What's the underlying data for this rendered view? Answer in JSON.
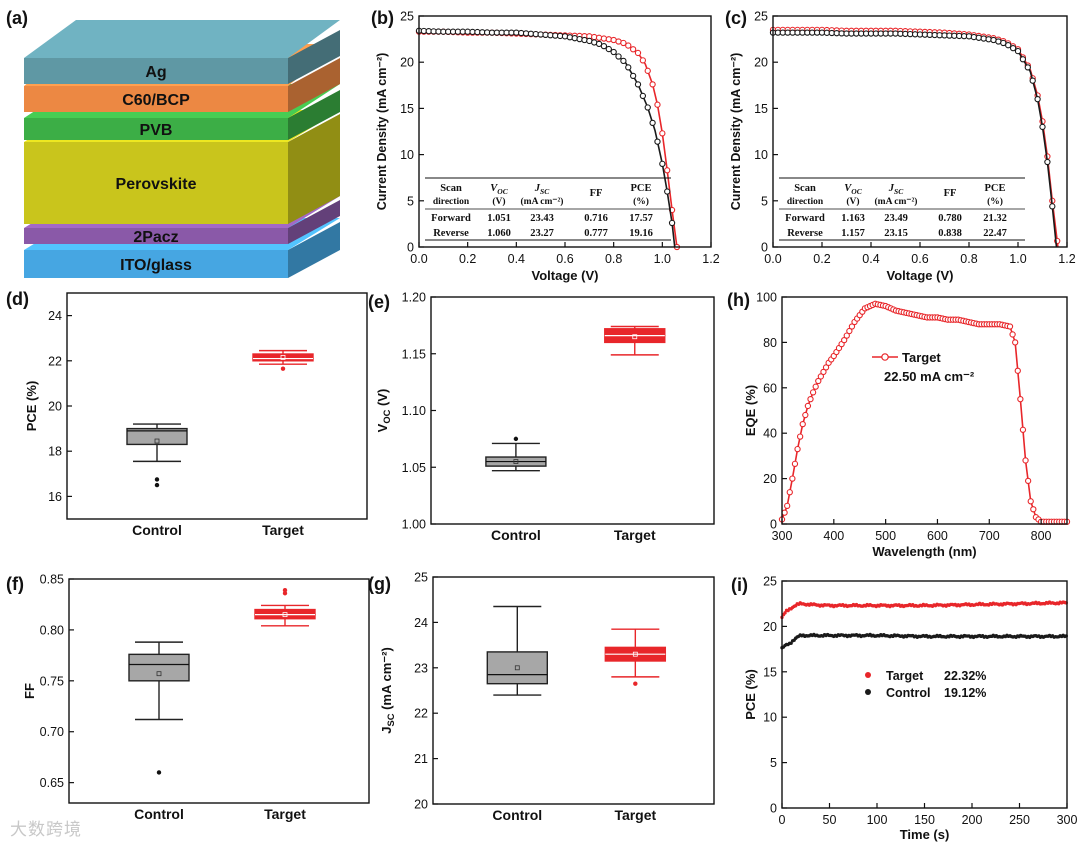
{
  "watermark": "大数跨境",
  "colors": {
    "target": "#e8262a",
    "control": "#1a1a1a",
    "box_control": "#a7a7a7",
    "box_target": "#e8262a"
  },
  "panel_a": {
    "letter": "(a)",
    "layers": [
      {
        "label": "Ag",
        "color": "#5f98a4"
      },
      {
        "label": "C60/BCP",
        "color": "#ec8843"
      },
      {
        "label": "PVB",
        "color": "#3cae46"
      },
      {
        "label": "Perovskite",
        "color": "#c9c51c"
      },
      {
        "label": "2Pacz",
        "color": "#8a59a8"
      },
      {
        "label": "ITO/glass",
        "color": "#46a6e2"
      }
    ]
  },
  "chart_data": [
    {
      "id": "b",
      "letter": "(b)",
      "type": "line",
      "xlabel": "Voltage (V)",
      "ylabel": "Current Density (mA cm⁻²)",
      "xlim": [
        0,
        1.2
      ],
      "ylim": [
        0,
        25
      ],
      "xticks": [
        "0.0",
        "0.2",
        "0.4",
        "0.6",
        "0.8",
        "1.0",
        "1.2"
      ],
      "yticks": [
        "0",
        "5",
        "10",
        "15",
        "20",
        "25"
      ],
      "series": [
        {
          "name": "Reverse",
          "color": "#e8262a",
          "x": [
            0,
            0.1,
            0.2,
            0.3,
            0.4,
            0.5,
            0.6,
            0.7,
            0.8,
            0.85,
            0.9,
            0.93,
            0.96,
            0.98,
            1.0,
            1.02,
            1.04,
            1.06
          ],
          "y": [
            23.3,
            23.3,
            23.2,
            23.2,
            23.1,
            23.0,
            22.9,
            22.8,
            22.4,
            22.0,
            21.0,
            19.8,
            17.6,
            15.4,
            12.3,
            8.3,
            4.0,
            0
          ]
        },
        {
          "name": "Forward",
          "color": "#1a1a1a",
          "x": [
            0,
            0.1,
            0.2,
            0.3,
            0.4,
            0.5,
            0.6,
            0.7,
            0.75,
            0.8,
            0.85,
            0.9,
            0.94,
            0.97,
            1.0,
            1.02,
            1.04,
            1.051
          ],
          "y": [
            23.4,
            23.3,
            23.3,
            23.2,
            23.2,
            23.0,
            22.8,
            22.3,
            21.9,
            21.1,
            19.9,
            17.6,
            15.1,
            12.6,
            9.0,
            6.0,
            2.6,
            0
          ]
        }
      ],
      "table": {
        "header1": [
          "Scan",
          "V",
          "J",
          "FF",
          "PCE"
        ],
        "header2": [
          "direction",
          "(V)",
          "(mA cm⁻²)",
          "",
          "(%)"
        ],
        "rows": [
          [
            "Forward",
            "1.051",
            "23.43",
            "0.716",
            "17.57"
          ],
          [
            "Reverse",
            "1.060",
            "23.27",
            "0.777",
            "19.16"
          ]
        ]
      }
    },
    {
      "id": "c",
      "letter": "(c)",
      "type": "line",
      "xlabel": "Voltage (V)",
      "ylabel": "Current Density (mA cm⁻²)",
      "xlim": [
        0,
        1.2
      ],
      "ylim": [
        0,
        25
      ],
      "xticks": [
        "0.0",
        "0.2",
        "0.4",
        "0.6",
        "0.8",
        "1.0",
        "1.2"
      ],
      "yticks": [
        "0",
        "5",
        "10",
        "15",
        "20",
        "25"
      ],
      "series": [
        {
          "name": "Forward",
          "color": "#e8262a",
          "x": [
            0,
            0.1,
            0.2,
            0.3,
            0.4,
            0.5,
            0.6,
            0.7,
            0.8,
            0.9,
            0.95,
            1.0,
            1.05,
            1.08,
            1.1,
            1.12,
            1.14,
            1.163
          ],
          "y": [
            23.5,
            23.5,
            23.5,
            23.4,
            23.4,
            23.4,
            23.3,
            23.2,
            23.0,
            22.6,
            22.2,
            21.4,
            19.2,
            16.4,
            13.6,
            9.8,
            5.0,
            0
          ]
        },
        {
          "name": "Reverse",
          "color": "#1a1a1a",
          "x": [
            0,
            0.1,
            0.2,
            0.3,
            0.4,
            0.5,
            0.6,
            0.7,
            0.8,
            0.9,
            0.95,
            1.0,
            1.05,
            1.08,
            1.1,
            1.12,
            1.14,
            1.157
          ],
          "y": [
            23.2,
            23.2,
            23.2,
            23.1,
            23.1,
            23.1,
            23.0,
            22.9,
            22.8,
            22.4,
            22.0,
            21.2,
            19.0,
            16.0,
            13.0,
            9.2,
            4.4,
            0
          ]
        }
      ],
      "table": {
        "header1": [
          "Scan",
          "V",
          "J",
          "FF",
          "PCE"
        ],
        "header2": [
          "direction",
          "(V)",
          "(mA cm⁻²)",
          "",
          "(%)"
        ],
        "rows": [
          [
            "Forward",
            "1.163",
            "23.49",
            "0.780",
            "21.32"
          ],
          [
            "Reverse",
            "1.157",
            "23.15",
            "0.838",
            "22.47"
          ]
        ]
      }
    },
    {
      "id": "d",
      "letter": "(d)",
      "type": "box",
      "ylabel": "PCE (%)",
      "ylim": [
        15,
        25
      ],
      "yticks": [
        "16",
        "18",
        "20",
        "22",
        "24"
      ],
      "ytick_vals": [
        16,
        18,
        20,
        22,
        24
      ],
      "categories": [
        "Control",
        "Target"
      ],
      "boxes": [
        {
          "q1": 18.3,
          "median": 18.9,
          "q3": 19.0,
          "whisker_low": 17.55,
          "whisker_high": 19.2,
          "mean": 18.45,
          "outliers": [
            16.75,
            16.5
          ]
        },
        {
          "q1": 22.0,
          "median": 22.1,
          "q3": 22.3,
          "whisker_low": 21.85,
          "whisker_high": 22.45,
          "mean": 22.15,
          "outliers": [
            21.65
          ]
        }
      ]
    },
    {
      "id": "e",
      "letter": "(e)",
      "type": "box",
      "ylabel": "V_OC (V)",
      "ylim": [
        1.0,
        1.2
      ],
      "yticks": [
        "1.00",
        "1.05",
        "1.10",
        "1.15",
        "1.20"
      ],
      "ytick_vals": [
        1.0,
        1.05,
        1.1,
        1.15,
        1.2
      ],
      "categories": [
        "Control",
        "Target"
      ],
      "boxes": [
        {
          "q1": 1.051,
          "median": 1.055,
          "q3": 1.059,
          "whisker_low": 1.047,
          "whisker_high": 1.071,
          "mean": 1.055,
          "outliers": [
            1.075
          ]
        },
        {
          "q1": 1.16,
          "median": 1.166,
          "q3": 1.172,
          "whisker_low": 1.149,
          "whisker_high": 1.174,
          "mean": 1.165,
          "outliers": []
        }
      ]
    },
    {
      "id": "h",
      "letter": "(h)",
      "type": "line",
      "xlabel": "Wavelength (nm)",
      "ylabel": "EQE (%)",
      "xlim": [
        300,
        850
      ],
      "ylim": [
        0,
        100
      ],
      "xticks": [
        "300",
        "400",
        "500",
        "600",
        "700",
        "800"
      ],
      "xtick_vals": [
        300,
        400,
        500,
        600,
        700,
        800
      ],
      "yticks": [
        "0",
        "20",
        "40",
        "60",
        "80",
        "100"
      ],
      "legend": {
        "name": "Target",
        "note": "22.50 mA cm⁻²"
      },
      "series": [
        {
          "name": "Target",
          "color": "#e8262a",
          "x": [
            300,
            310,
            320,
            330,
            340,
            350,
            360,
            370,
            380,
            390,
            400,
            420,
            440,
            460,
            480,
            500,
            520,
            540,
            560,
            580,
            600,
            620,
            640,
            660,
            680,
            700,
            720,
            740,
            750,
            760,
            770,
            780,
            790,
            800,
            820,
            850
          ],
          "y": [
            2,
            8,
            20,
            33,
            44,
            52,
            58,
            63,
            67,
            71,
            74,
            81,
            89,
            95,
            97,
            96,
            94,
            93,
            92,
            91,
            91,
            90,
            90,
            89,
            88,
            88,
            88,
            87,
            80,
            55,
            28,
            10,
            3,
            1,
            1,
            1
          ]
        }
      ]
    },
    {
      "id": "f",
      "letter": "(f)",
      "type": "box",
      "ylabel": "FF",
      "ylim": [
        0.63,
        0.85
      ],
      "yticks": [
        "0.65",
        "0.70",
        "0.75",
        "0.80",
        "0.85"
      ],
      "ytick_vals": [
        0.65,
        0.7,
        0.75,
        0.8,
        0.85
      ],
      "categories": [
        "Control",
        "Target"
      ],
      "boxes": [
        {
          "q1": 0.75,
          "median": 0.766,
          "q3": 0.776,
          "whisker_low": 0.712,
          "whisker_high": 0.788,
          "mean": 0.757,
          "outliers": [
            0.66
          ]
        },
        {
          "q1": 0.811,
          "median": 0.815,
          "q3": 0.82,
          "whisker_low": 0.804,
          "whisker_high": 0.824,
          "mean": 0.815,
          "outliers": [
            0.836,
            0.839
          ]
        }
      ]
    },
    {
      "id": "g",
      "letter": "(g)",
      "type": "box",
      "ylabel": "J_SC (mA cm⁻²)",
      "ylim": [
        20,
        25
      ],
      "yticks": [
        "20",
        "21",
        "22",
        "23",
        "24",
        "25"
      ],
      "ytick_vals": [
        20,
        21,
        22,
        23,
        24,
        25
      ],
      "categories": [
        "Control",
        "Target"
      ],
      "boxes": [
        {
          "q1": 22.65,
          "median": 22.85,
          "q3": 23.35,
          "whisker_low": 22.4,
          "whisker_high": 24.35,
          "mean": 23.0,
          "outliers": []
        },
        {
          "q1": 23.15,
          "median": 23.3,
          "q3": 23.45,
          "whisker_low": 22.8,
          "whisker_high": 23.85,
          "mean": 23.3,
          "outliers": [
            22.65
          ]
        }
      ]
    },
    {
      "id": "i",
      "letter": "(i)",
      "type": "scatter",
      "xlabel": "Time (s)",
      "ylabel": "PCE (%)",
      "xlim": [
        0,
        300
      ],
      "ylim": [
        0,
        25
      ],
      "xticks": [
        "0",
        "50",
        "100",
        "150",
        "200",
        "250",
        "300"
      ],
      "xtick_vals": [
        0,
        50,
        100,
        150,
        200,
        250,
        300
      ],
      "yticks": [
        "0",
        "5",
        "10",
        "15",
        "20",
        "25"
      ],
      "legend": [
        {
          "name": "Target",
          "value": "22.32%"
        },
        {
          "name": "Control",
          "value": "19.12%"
        }
      ],
      "series": [
        {
          "name": "Target",
          "color": "#e8262a",
          "x": [
            0,
            4,
            8,
            12,
            16,
            20,
            30,
            50,
            100,
            150,
            200,
            250,
            300
          ],
          "y": [
            21.0,
            21.6,
            21.9,
            22.2,
            22.4,
            22.5,
            22.4,
            22.3,
            22.3,
            22.3,
            22.4,
            22.5,
            22.6
          ]
        },
        {
          "name": "Control",
          "color": "#1a1a1a",
          "x": [
            0,
            4,
            8,
            12,
            16,
            20,
            30,
            50,
            100,
            150,
            200,
            250,
            300
          ],
          "y": [
            17.6,
            17.9,
            18.1,
            18.5,
            18.8,
            19.0,
            19.0,
            19.0,
            19.0,
            18.9,
            18.9,
            18.9,
            18.9
          ]
        }
      ]
    }
  ]
}
